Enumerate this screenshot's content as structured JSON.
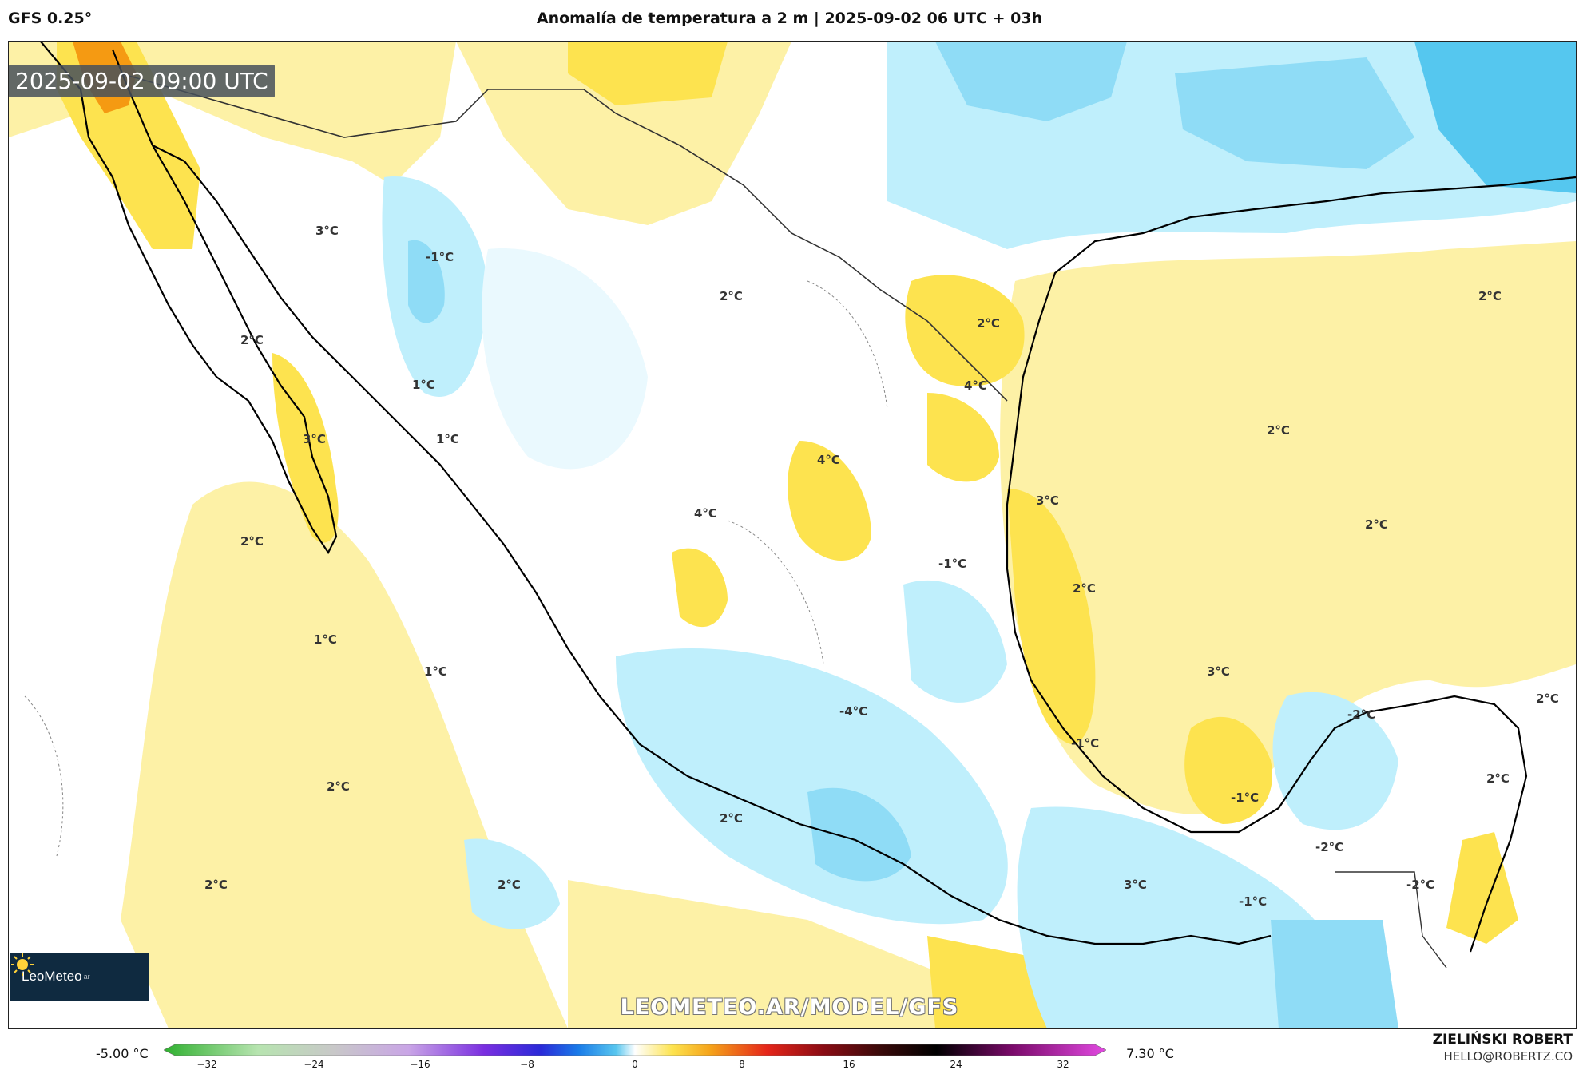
{
  "header": {
    "model": "GFS 0.25°",
    "title": "Anomalía de temperatura a 2 m | 2025-09-02 06 UTC + 03h"
  },
  "map": {
    "timestamp": "2025-09-02 09:00 UTC",
    "watermark": "LEOMETEO.AR/MODEL/GFS",
    "logo_text": "LeoMeteo",
    "logo_suffix": "ar",
    "contour_labels": [
      "3°C",
      "-1°C",
      "2°C",
      "2°C",
      "2°C",
      "2°C",
      "4°C",
      "1°C",
      "1°C",
      "3°C",
      "2°C",
      "4°C",
      "4°C",
      "3°C",
      "2°C",
      "-1°C",
      "2°C",
      "2°C",
      "1°C",
      "1°C",
      "3°C",
      "-4°C",
      "-1°C",
      "-2°C",
      "2°C",
      "2°C",
      "2°C",
      "-1°C",
      "2°C",
      "2°C",
      "2°C",
      "3°C",
      "-2°C",
      "-2°C",
      "-1°C"
    ],
    "colors": {
      "cold_light": "#bfeffc",
      "cold_mid": "#8fdcf6",
      "cold_strong": "#55c7ef",
      "warm_light": "#fdf1a6",
      "warm_mid": "#fde34f",
      "warm_strong": "#fbbf1c",
      "hot": "#f59a12",
      "coast": "#000000"
    }
  },
  "colorbar": {
    "min_label": "-5.00 °C",
    "max_label": "7.30 °C",
    "ticks": [
      "−32",
      "−24",
      "−16",
      "−8",
      "0",
      "8",
      "16",
      "24",
      "32"
    ]
  },
  "footer": {
    "author": "ZIELIŃSKI ROBERT",
    "contact": "HELLO@ROBERTZ.CO"
  }
}
